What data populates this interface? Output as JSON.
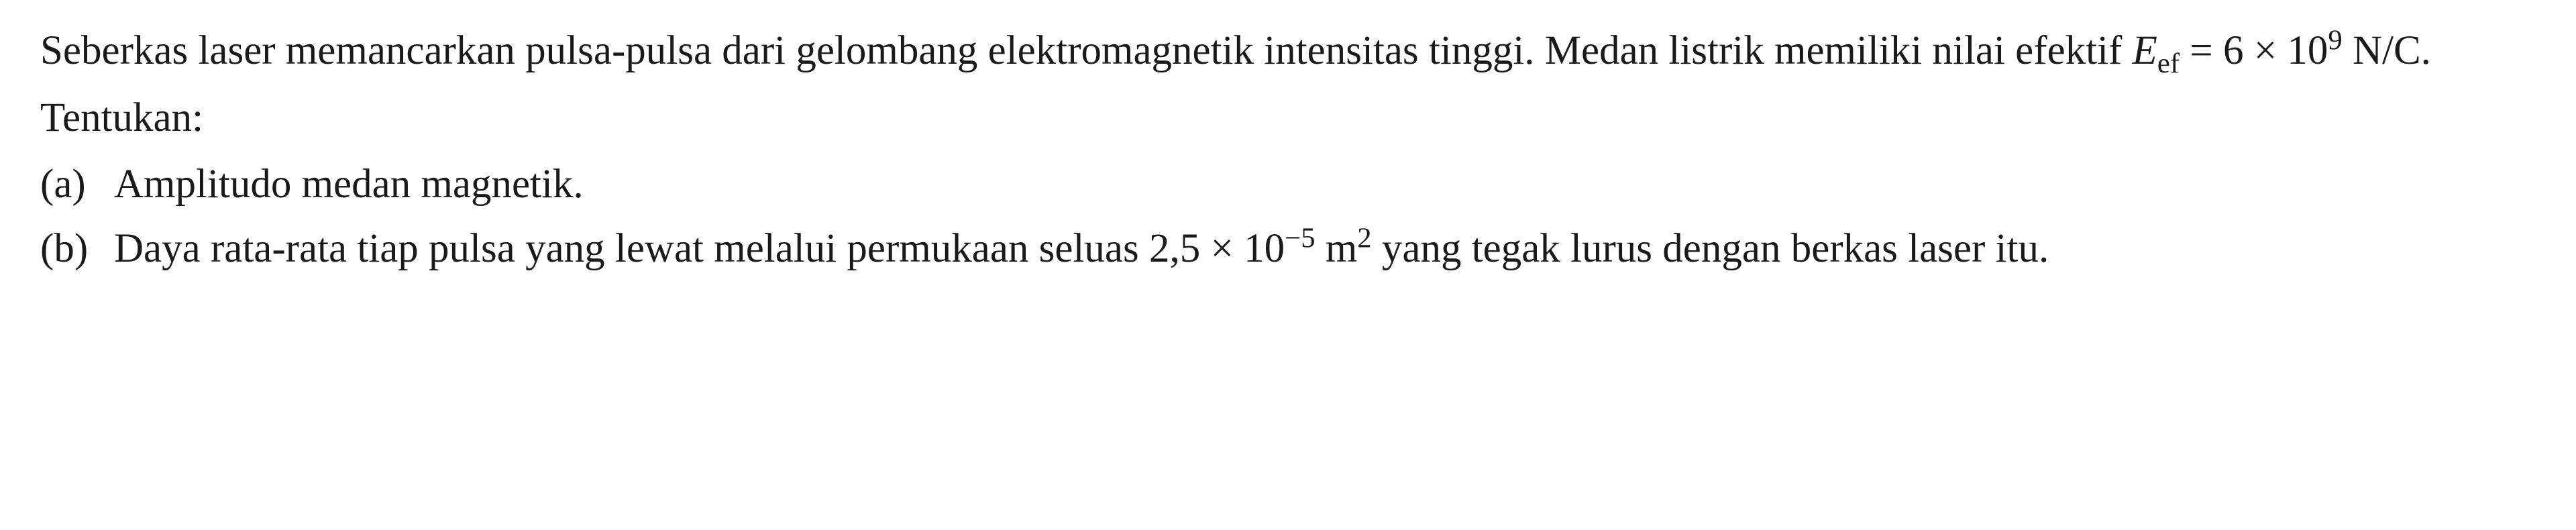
{
  "problem": {
    "intro_line1": "Seberkas laser memancarkan pulsa-pulsa dari gelombang elektromagnetik intensitas",
    "intro_line2_prefix": "tinggi. Medan listrik memiliki nilai efektif ",
    "formula_var": "E",
    "formula_sub": "ef",
    "formula_eq": " = 6 × 10",
    "formula_exp": "9",
    "formula_unit": " N/C.",
    "instruction": "Tentukan:",
    "items": [
      {
        "label": "(a)",
        "text": "Amplitudo medan magnetik."
      },
      {
        "label": "(b)",
        "text_prefix": "Daya rata-rata tiap pulsa yang lewat melalui permukaan seluas 2,5 × 10",
        "exp1": "−5",
        "mid": " m",
        "exp2": "2",
        "text_suffix": " yang tegak lurus dengan berkas laser itu."
      }
    ]
  },
  "style": {
    "background_color": "#ffffff",
    "text_color": "#1a1a1a",
    "font_size": 61,
    "font_family": "Georgia, Times New Roman, serif"
  }
}
